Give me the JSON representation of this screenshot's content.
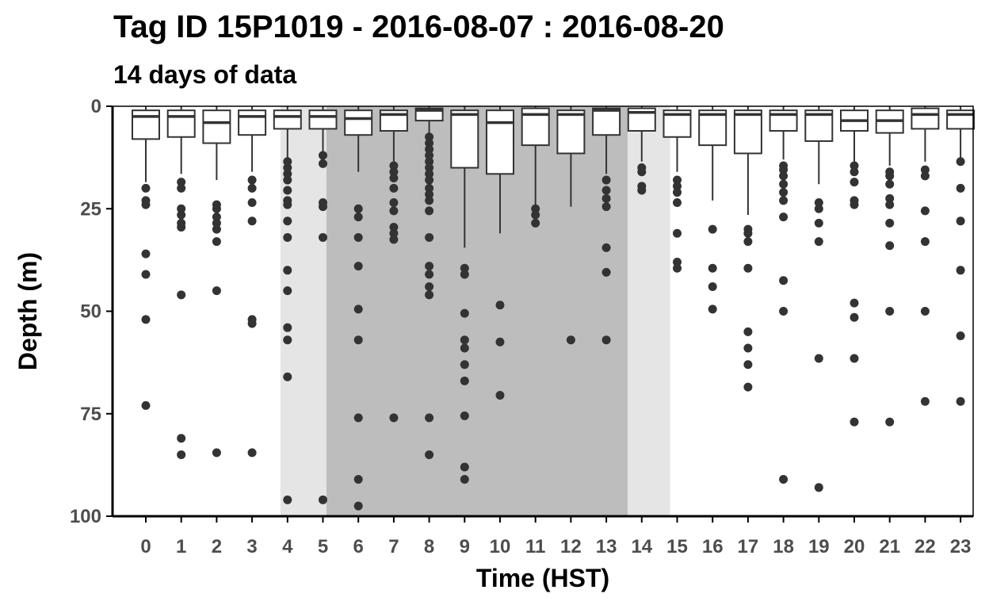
{
  "chart_data": {
    "type": "boxplot",
    "title": "Tag ID 15P1019 - 2016-08-07 : 2016-08-20",
    "subtitle": "14 days of data",
    "xlabel": "Time (HST)",
    "ylabel": "Depth (m)",
    "y_reversed": true,
    "ylim": [
      0,
      100
    ],
    "yticks": [
      0,
      25,
      50,
      75,
      100
    ],
    "categories": [
      "0",
      "1",
      "2",
      "3",
      "4",
      "5",
      "6",
      "7",
      "8",
      "9",
      "10",
      "11",
      "12",
      "13",
      "14",
      "15",
      "16",
      "17",
      "18",
      "19",
      "20",
      "21",
      "22",
      "23"
    ],
    "shading": [
      {
        "from": 3.8,
        "to": 14.8,
        "color": "#e5e5e5"
      },
      {
        "from": 5.1,
        "to": 13.6,
        "color": "#bdbdbd"
      }
    ],
    "boxes": [
      {
        "x": 0,
        "q1": 1.0,
        "median": 2.5,
        "q3": 8.0,
        "whisker_low": 0,
        "whisker_high": 18.5,
        "outliers": [
          20,
          23,
          24,
          36,
          41,
          52,
          73
        ]
      },
      {
        "x": 1,
        "q1": 1.0,
        "median": 2.5,
        "q3": 7.5,
        "whisker_low": 0,
        "whisker_high": 16.5,
        "outliers": [
          18.5,
          20,
          25,
          26.5,
          28.5,
          29.5,
          46,
          81,
          85
        ]
      },
      {
        "x": 2,
        "q1": 1.0,
        "median": 4.0,
        "q3": 9.0,
        "whisker_low": 0,
        "whisker_high": 18.0,
        "outliers": [
          24,
          25,
          27,
          28.5,
          30,
          33,
          45,
          84.5
        ]
      },
      {
        "x": 3,
        "q1": 1.0,
        "median": 2.5,
        "q3": 7.0,
        "whisker_low": 0,
        "whisker_high": 16.0,
        "outliers": [
          18,
          20,
          23.5,
          28,
          52,
          53,
          84.5
        ]
      },
      {
        "x": 4,
        "q1": 1.0,
        "median": 2.5,
        "q3": 5.5,
        "whisker_low": 0,
        "whisker_high": 12.5,
        "outliers": [
          13.5,
          15,
          16.5,
          18,
          20.5,
          23,
          24,
          28,
          32,
          40,
          45,
          54,
          57,
          66,
          96
        ]
      },
      {
        "x": 5,
        "q1": 1.0,
        "median": 2.5,
        "q3": 5.5,
        "whisker_low": 0,
        "whisker_high": 11.0,
        "outliers": [
          12,
          14,
          23.5,
          24.5,
          32,
          96
        ]
      },
      {
        "x": 6,
        "q1": 1.0,
        "median": 3.0,
        "q3": 7.0,
        "whisker_low": 0,
        "whisker_high": 16.0,
        "outliers": [
          25,
          27,
          32,
          39,
          49.5,
          57,
          76,
          91,
          97.5
        ]
      },
      {
        "x": 7,
        "q1": 1.0,
        "median": 2.0,
        "q3": 6.0,
        "whisker_low": 0,
        "whisker_high": 13.5,
        "outliers": [
          14.5,
          16,
          17.5,
          20,
          23.5,
          25.5,
          29.5,
          31,
          32.5,
          76
        ]
      },
      {
        "x": 8,
        "q1": 0.5,
        "median": 1.0,
        "q3": 3.5,
        "whisker_low": 0,
        "whisker_high": 7.0,
        "outliers": [
          7.5,
          9,
          10.5,
          12,
          13.5,
          15,
          16.5,
          18,
          20,
          21.5,
          23,
          25.5,
          32,
          39,
          41,
          44,
          46,
          76,
          85
        ]
      },
      {
        "x": 9,
        "q1": 1.0,
        "median": 2.0,
        "q3": 15.0,
        "whisker_low": 0,
        "whisker_high": 34.5,
        "outliers": [
          39.5,
          41,
          50.5,
          57,
          59,
          63,
          67,
          75.5,
          88,
          91
        ]
      },
      {
        "x": 10,
        "q1": 1.0,
        "median": 4.0,
        "q3": 16.5,
        "whisker_low": 0,
        "whisker_high": 31.0,
        "outliers": [
          48.5,
          57.5,
          70.5
        ]
      },
      {
        "x": 11,
        "q1": 0.5,
        "median": 2.0,
        "q3": 9.5,
        "whisker_low": 0,
        "whisker_high": 24.0,
        "outliers": [
          25,
          26.5,
          28.5
        ]
      },
      {
        "x": 12,
        "q1": 1.0,
        "median": 2.0,
        "q3": 11.5,
        "whisker_low": 0,
        "whisker_high": 24.5,
        "outliers": [
          57
        ]
      },
      {
        "x": 13,
        "q1": 0.5,
        "median": 1.0,
        "q3": 7.0,
        "whisker_low": 0,
        "whisker_high": 16.5,
        "outliers": [
          18,
          20.5,
          22.5,
          24.5,
          34.5,
          40.5,
          57
        ]
      },
      {
        "x": 14,
        "q1": 0.5,
        "median": 1.5,
        "q3": 6.0,
        "whisker_low": 0,
        "whisker_high": 13.5,
        "outliers": [
          15,
          16,
          19.5,
          20.5
        ]
      },
      {
        "x": 15,
        "q1": 1.0,
        "median": 2.0,
        "q3": 7.5,
        "whisker_low": 0,
        "whisker_high": 16.0,
        "outliers": [
          18,
          19.5,
          21,
          23.5,
          31,
          38,
          39.5
        ]
      },
      {
        "x": 16,
        "q1": 1.0,
        "median": 2.0,
        "q3": 9.5,
        "whisker_low": 0,
        "whisker_high": 23.0,
        "outliers": [
          30,
          39.5,
          44,
          49.5
        ]
      },
      {
        "x": 17,
        "q1": 1.0,
        "median": 2.0,
        "q3": 11.5,
        "whisker_low": 0,
        "whisker_high": 26.5,
        "outliers": [
          30,
          31,
          33,
          39.5,
          55,
          59,
          63,
          68.5
        ]
      },
      {
        "x": 18,
        "q1": 1.0,
        "median": 2.0,
        "q3": 6.0,
        "whisker_low": 0,
        "whisker_high": 13.0,
        "outliers": [
          14.5,
          15.5,
          17,
          19,
          21,
          23,
          27,
          42.5,
          50,
          91
        ]
      },
      {
        "x": 19,
        "q1": 1.0,
        "median": 2.0,
        "q3": 8.5,
        "whisker_low": 0,
        "whisker_high": 19.0,
        "outliers": [
          23.5,
          25,
          28.5,
          33,
          61.5,
          93
        ]
      },
      {
        "x": 20,
        "q1": 1.0,
        "median": 3.5,
        "q3": 6.0,
        "whisker_low": 0,
        "whisker_high": 13.5,
        "outliers": [
          14.5,
          16,
          18.5,
          23,
          24,
          48,
          51.5,
          61.5,
          77
        ]
      },
      {
        "x": 21,
        "q1": 1.0,
        "median": 3.5,
        "q3": 6.5,
        "whisker_low": 0,
        "whisker_high": 14.5,
        "outliers": [
          16,
          17,
          19,
          22.5,
          24,
          28.5,
          34,
          50,
          77
        ]
      },
      {
        "x": 22,
        "q1": 0.5,
        "median": 2.0,
        "q3": 5.5,
        "whisker_low": 0,
        "whisker_high": 13.5,
        "outliers": [
          15.5,
          17,
          25.5,
          33,
          50,
          72
        ]
      },
      {
        "x": 23,
        "q1": 1.0,
        "median": 2.0,
        "q3": 5.5,
        "whisker_low": 0,
        "whisker_high": 12.5,
        "outliers": [
          13.5,
          20,
          28,
          40,
          56,
          72
        ]
      }
    ]
  }
}
